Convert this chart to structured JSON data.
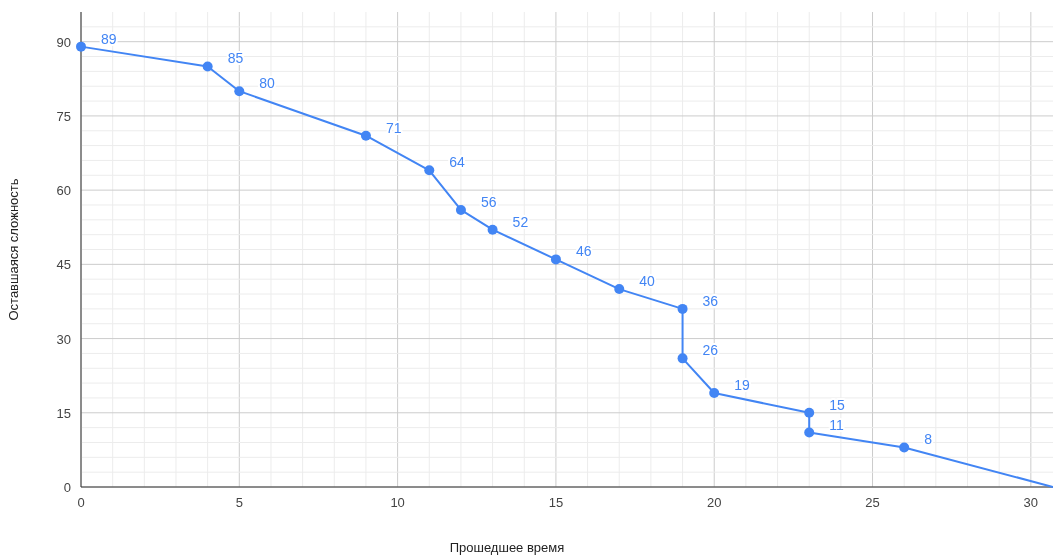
{
  "chart_data": {
    "type": "line",
    "xlabel": "Прошедшее время",
    "ylabel": "Оставшаяся сложность",
    "xlim": [
      0,
      30.7
    ],
    "ylim": [
      0,
      96
    ],
    "xticks": [
      0,
      {
        "value": 1,
        "label": null
      },
      {
        "value": 2,
        "label": null
      },
      {
        "value": 3,
        "label": null
      },
      {
        "value": 4,
        "label": null
      },
      5,
      {
        "value": 6,
        "label": null
      },
      {
        "value": 7,
        "label": null
      },
      {
        "value": 8,
        "label": null
      },
      {
        "value": 9,
        "label": null
      },
      10,
      {
        "value": 11,
        "label": null
      },
      {
        "value": 12,
        "label": null
      },
      {
        "value": 13,
        "label": null
      },
      {
        "value": 14,
        "label": null
      },
      15,
      {
        "value": 16,
        "label": null
      },
      {
        "value": 17,
        "label": null
      },
      {
        "value": 18,
        "label": null
      },
      {
        "value": 19,
        "label": null
      },
      20,
      {
        "value": 21,
        "label": null
      },
      {
        "value": 22,
        "label": null
      },
      {
        "value": 23,
        "label": null
      },
      {
        "value": 24,
        "label": null
      },
      25,
      {
        "value": 26,
        "label": null
      },
      {
        "value": 27,
        "label": null
      },
      {
        "value": 28,
        "label": null
      },
      {
        "value": 29,
        "label": null
      },
      30
    ],
    "yticks": [
      0,
      {
        "value": 3,
        "label": null
      },
      {
        "value": 6,
        "label": null
      },
      {
        "value": 9,
        "label": null
      },
      {
        "value": 12,
        "label": null
      },
      15,
      {
        "value": 18,
        "label": null
      },
      {
        "value": 21,
        "label": null
      },
      {
        "value": 24,
        "label": null
      },
      {
        "value": 27,
        "label": null
      },
      30,
      {
        "value": 33,
        "label": null
      },
      {
        "value": 36,
        "label": null
      },
      {
        "value": 39,
        "label": null
      },
      {
        "value": 42,
        "label": null
      },
      45,
      {
        "value": 48,
        "label": null
      },
      {
        "value": 51,
        "label": null
      },
      {
        "value": 54,
        "label": null
      },
      {
        "value": 57,
        "label": null
      },
      60,
      {
        "value": 63,
        "label": null
      },
      {
        "value": 66,
        "label": null
      },
      {
        "value": 69,
        "label": null
      },
      {
        "value": 72,
        "label": null
      },
      75,
      {
        "value": 78,
        "label": null
      },
      {
        "value": 81,
        "label": null
      },
      {
        "value": 84,
        "label": null
      },
      {
        "value": 87,
        "label": null
      },
      90,
      {
        "value": 93,
        "label": null
      }
    ],
    "grid": true,
    "line_style": "solid",
    "series": [
      {
        "color": "#4285f4",
        "marker": "circle",
        "data_labels": true,
        "x": [
          0,
          4,
          5,
          9,
          11,
          12,
          13,
          15,
          17,
          19,
          19,
          20,
          23,
          23,
          26
        ],
        "values": [
          89,
          85,
          80,
          71,
          64,
          56,
          52,
          46,
          40,
          36,
          26,
          19,
          15,
          11,
          8
        ]
      },
      {
        "color": "#4285f4",
        "marker": "none",
        "x": [
          26,
          30.7
        ],
        "values": [
          8,
          0
        ]
      }
    ]
  }
}
